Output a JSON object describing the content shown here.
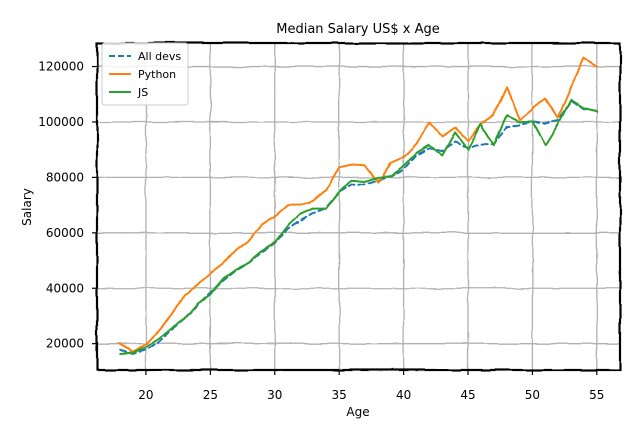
{
  "chart_data": {
    "type": "line",
    "title": "Median Salary US$ x Age",
    "xlabel": "Age",
    "ylabel": "Salary",
    "xlim": [
      16.2,
      56.8
    ],
    "ylim": [
      10500,
      128500
    ],
    "xticks": [
      20,
      25,
      30,
      35,
      40,
      45,
      50,
      55
    ],
    "yticks": [
      20000,
      40000,
      60000,
      80000,
      100000,
      120000
    ],
    "grid": true,
    "legend_position": "top-left",
    "x": [
      18,
      19,
      20,
      21,
      22,
      23,
      24,
      25,
      26,
      27,
      28,
      29,
      30,
      31,
      32,
      33,
      34,
      35,
      36,
      37,
      38,
      39,
      40,
      41,
      42,
      43,
      44,
      45,
      46,
      47,
      48,
      49,
      50,
      51,
      52,
      53,
      54,
      55
    ],
    "series": [
      {
        "name": "All devs",
        "color": "#1f77b4",
        "style": "dashed",
        "values": [
          17784,
          16500,
          18012,
          20628,
          25206,
          28930,
          34034,
          38508,
          42923,
          46593,
          49211,
          52857,
          56131,
          61320,
          64312,
          67000,
          69000,
          74500,
          77500,
          77500,
          79000,
          80500,
          82500,
          88000,
          90500,
          89500,
          93000,
          90500,
          92000,
          92000,
          98000,
          99000,
          100000,
          99500,
          100500,
          107500,
          104700,
          104000
        ]
      },
      {
        "name": "Python",
        "color": "#ff7f0e",
        "style": "solid",
        "values": [
          20046,
          17100,
          20000,
          24744,
          30500,
          37732,
          41247,
          45372,
          48876,
          53850,
          57287,
          63016,
          65998,
          70003,
          70000,
          71496,
          75370,
          83640,
          84666,
          84392,
          78254,
          85000,
          87038,
          91991,
          100000,
          94796,
          97962,
          93302,
          99240,
          102736,
          112285,
          100771,
          104708,
          108423,
          101407,
          112542,
          122870,
          120000
        ]
      },
      {
        "name": "JS",
        "color": "#2ca02c",
        "style": "solid",
        "values": [
          16446,
          16791,
          18942,
          21780,
          25704,
          29000,
          34372,
          37810,
          43515,
          46823,
          49293,
          53437,
          56373,
          62375,
          66674,
          68745,
          68746,
          74583,
          79000,
          78508,
          79996,
          80403,
          83820,
          88833,
          91660,
          87892,
          96243,
          90000,
          99313,
          91660,
          102264,
          100000,
          100000,
          91660,
          99240,
          108000,
          105000,
          103800
        ]
      }
    ]
  }
}
